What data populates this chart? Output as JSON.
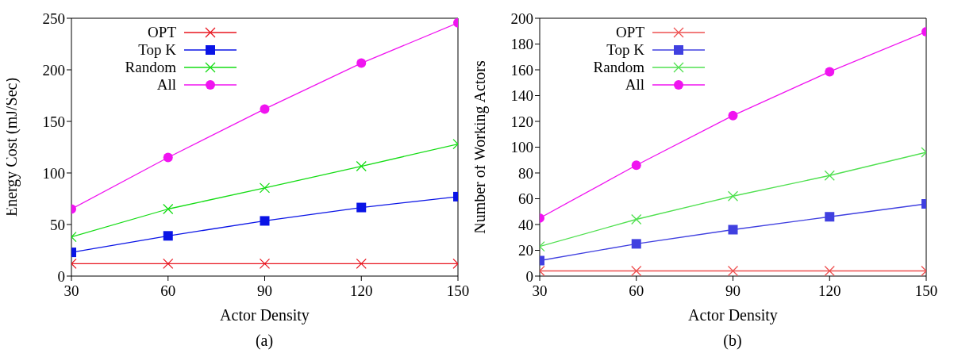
{
  "chart_data": [
    {
      "type": "line",
      "xlabel": "Actor Density",
      "ylabel": "Energy Cost (mJ/Sec)",
      "annotations": [
        "(a)"
      ],
      "x": [
        30,
        60,
        90,
        120,
        150
      ],
      "xlim": [
        30,
        150
      ],
      "xticks": [
        30,
        60,
        90,
        120,
        150
      ],
      "ylim": [
        0,
        250
      ],
      "yticks": [
        0,
        50,
        100,
        150,
        200,
        250
      ],
      "legend": "top left",
      "grid": false,
      "series": [
        {
          "name": "OPT",
          "color": "#e8141e",
          "marker": "cross",
          "values": [
            12,
            12,
            12,
            12,
            12
          ]
        },
        {
          "name": "Top K",
          "color": "#0a14e6",
          "marker": "square",
          "values": [
            23,
            39,
            53.5,
            66.5,
            77
          ]
        },
        {
          "name": "Random",
          "color": "#14dc14",
          "marker": "cross",
          "values": [
            38,
            65,
            85.5,
            106.5,
            128
          ]
        },
        {
          "name": "All",
          "color": "#f014f0",
          "marker": "circle",
          "values": [
            65,
            115,
            162,
            206.5,
            245.5
          ]
        }
      ]
    },
    {
      "type": "line",
      "xlabel": "Actor Density",
      "ylabel": "Number of  Working Actors",
      "annotations": [
        "(b)"
      ],
      "x": [
        30,
        60,
        90,
        120,
        150
      ],
      "xlim": [
        30,
        150
      ],
      "xticks": [
        30,
        60,
        90,
        120,
        150
      ],
      "ylim": [
        0,
        200
      ],
      "yticks": [
        0,
        20,
        40,
        60,
        80,
        100,
        120,
        140,
        160,
        180,
        200
      ],
      "legend": "top left",
      "grid": false,
      "series": [
        {
          "name": "OPT",
          "color": "#ee5050",
          "marker": "cross",
          "values": [
            4,
            4,
            4,
            4,
            4
          ]
        },
        {
          "name": "Top K",
          "color": "#4040e0",
          "marker": "square",
          "values": [
            12,
            25,
            36,
            46,
            56
          ]
        },
        {
          "name": "Random",
          "color": "#50e050",
          "marker": "cross",
          "values": [
            23,
            44,
            62,
            78,
            96
          ]
        },
        {
          "name": "All",
          "color": "#f014f0",
          "marker": "circle",
          "values": [
            45,
            86,
            124.5,
            158.5,
            189.5
          ]
        }
      ]
    }
  ]
}
